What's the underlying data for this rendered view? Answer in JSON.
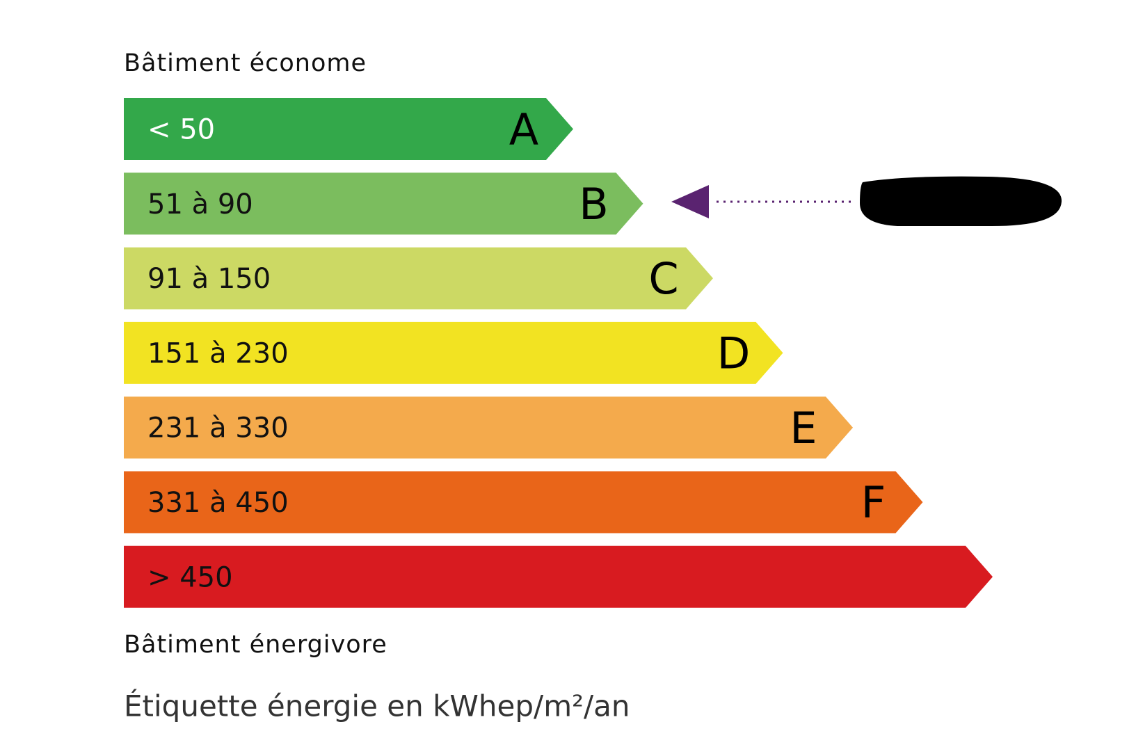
{
  "header": "Bâtiment économe",
  "bands": [
    {
      "range": "< 50",
      "letter": "A",
      "color": "#33a84a"
    },
    {
      "range": "51 à 90",
      "letter": "B",
      "color": "#7bbd5e"
    },
    {
      "range": "91 à 150",
      "letter": "C",
      "color": "#ccd964"
    },
    {
      "range": "151 à 230",
      "letter": "D",
      "color": "#f2e322"
    },
    {
      "range": "231 à 330",
      "letter": "E",
      "color": "#f4aa4c"
    },
    {
      "range": "331 à 450",
      "letter": "F",
      "color": "#e96519"
    },
    {
      "range": "> 450",
      "color": "#d81b20"
    }
  ],
  "footer": "Bâtiment énergivore",
  "caption": "Étiquette énergie en kWhep/m²/an"
}
